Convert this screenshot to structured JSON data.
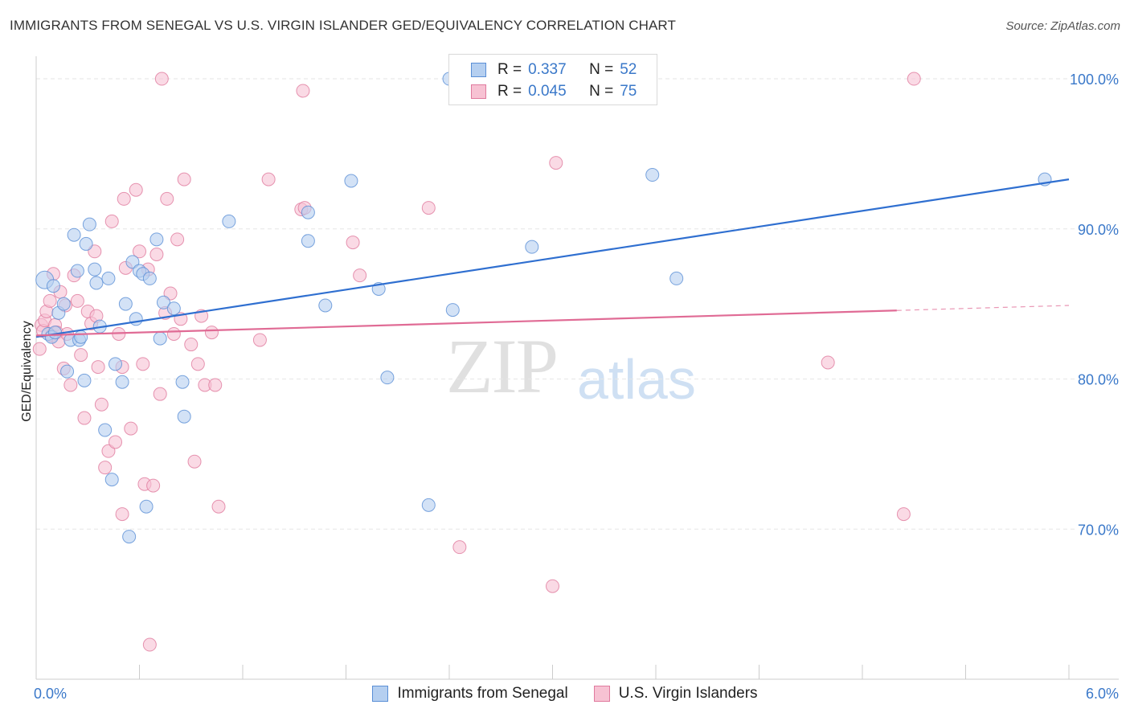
{
  "title": "IMMIGRANTS FROM SENEGAL VS U.S. VIRGIN ISLANDER GED/EQUIVALENCY CORRELATION CHART",
  "source": "Source: ZipAtlas.com",
  "watermark": {
    "part1": "ZIP",
    "part2": "atlas"
  },
  "legend_top": [
    {
      "r_label": "R =",
      "r_value": "0.337",
      "n_label": "N =",
      "n_value": "52"
    },
    {
      "r_label": "R =",
      "r_value": "0.045",
      "n_label": "N =",
      "n_value": "75"
    }
  ],
  "colors": {
    "blue_fill": "#b5cff0",
    "blue_stroke": "#5a8fd6",
    "blue_line": "#2f6fd0",
    "pink_fill": "#f7c2d3",
    "pink_stroke": "#e07a9e",
    "pink_line": "#e06b95",
    "grid": "#e6e6e6",
    "tick_text": "#3a78c9"
  },
  "chart_data": {
    "type": "scatter",
    "title": "IMMIGRANTS FROM SENEGAL VS U.S. VIRGIN ISLANDER GED/EQUIVALENCY CORRELATION CHART",
    "xlabel": "",
    "ylabel": "GED/Equivalency",
    "xlim": [
      0,
      6.0
    ],
    "ylim": [
      60.0,
      101.5
    ],
    "x_tick_labels": [
      {
        "value": 0,
        "label": "0.0%"
      },
      {
        "value": 6.0,
        "label": "6.0%"
      }
    ],
    "y_ticks": [
      {
        "value": 100,
        "label": "100.0%"
      },
      {
        "value": 90,
        "label": "90.0%"
      },
      {
        "value": 80,
        "label": "80.0%"
      },
      {
        "value": 70,
        "label": "70.0%"
      }
    ],
    "grid": true,
    "legend_position": "bottom",
    "series": [
      {
        "name": "Immigrants from Senegal",
        "color": "blue",
        "trend": {
          "x": [
            0,
            6.0
          ],
          "y": [
            82.8,
            93.3
          ],
          "dashed_from": null
        },
        "points": [
          [
            0.05,
            86.6
          ],
          [
            0.07,
            83.0
          ],
          [
            0.09,
            82.8
          ],
          [
            0.1,
            86.2
          ],
          [
            0.11,
            83.1
          ],
          [
            0.13,
            84.4
          ],
          [
            0.16,
            85.0
          ],
          [
            0.18,
            80.5
          ],
          [
            0.2,
            82.6
          ],
          [
            0.22,
            89.6
          ],
          [
            0.24,
            87.2
          ],
          [
            0.25,
            82.6
          ],
          [
            0.26,
            82.8
          ],
          [
            0.28,
            79.9
          ],
          [
            0.29,
            89.0
          ],
          [
            0.31,
            90.3
          ],
          [
            0.34,
            87.3
          ],
          [
            0.35,
            86.4
          ],
          [
            0.37,
            83.5
          ],
          [
            0.4,
            76.6
          ],
          [
            0.42,
            86.7
          ],
          [
            0.44,
            73.3
          ],
          [
            0.46,
            81.0
          ],
          [
            0.5,
            79.8
          ],
          [
            0.52,
            85.0
          ],
          [
            0.54,
            69.5
          ],
          [
            0.56,
            87.8
          ],
          [
            0.58,
            84.0
          ],
          [
            0.6,
            87.2
          ],
          [
            0.62,
            87.0
          ],
          [
            0.64,
            71.5
          ],
          [
            0.66,
            86.7
          ],
          [
            0.7,
            89.3
          ],
          [
            0.72,
            82.7
          ],
          [
            0.74,
            85.1
          ],
          [
            0.8,
            84.7
          ],
          [
            0.85,
            79.8
          ],
          [
            0.86,
            77.5
          ],
          [
            1.12,
            90.5
          ],
          [
            1.58,
            89.2
          ],
          [
            1.58,
            91.1
          ],
          [
            1.68,
            84.9
          ],
          [
            1.83,
            93.2
          ],
          [
            1.99,
            86.0
          ],
          [
            2.04,
            80.1
          ],
          [
            2.28,
            71.6
          ],
          [
            2.42,
            84.6
          ],
          [
            2.4,
            100.0
          ],
          [
            2.88,
            88.8
          ],
          [
            3.58,
            93.6
          ],
          [
            3.72,
            86.7
          ],
          [
            5.86,
            93.3
          ]
        ]
      },
      {
        "name": "U.S. Virgin Islanders",
        "color": "pink",
        "trend": {
          "x": [
            0,
            6.0
          ],
          "y": [
            82.9,
            84.9
          ],
          "dashed_from": 5.0
        },
        "points": [
          [
            0.02,
            82.0
          ],
          [
            0.03,
            83.6
          ],
          [
            0.04,
            83.2
          ],
          [
            0.05,
            83.9
          ],
          [
            0.06,
            84.5
          ],
          [
            0.08,
            85.2
          ],
          [
            0.09,
            82.9
          ],
          [
            0.1,
            87.0
          ],
          [
            0.11,
            83.6
          ],
          [
            0.12,
            83.1
          ],
          [
            0.13,
            82.5
          ],
          [
            0.14,
            85.8
          ],
          [
            0.16,
            80.7
          ],
          [
            0.17,
            84.9
          ],
          [
            0.18,
            83.0
          ],
          [
            0.2,
            79.6
          ],
          [
            0.22,
            86.9
          ],
          [
            0.24,
            85.2
          ],
          [
            0.26,
            81.6
          ],
          [
            0.28,
            77.4
          ],
          [
            0.3,
            84.5
          ],
          [
            0.32,
            83.7
          ],
          [
            0.34,
            88.5
          ],
          [
            0.35,
            84.2
          ],
          [
            0.36,
            80.8
          ],
          [
            0.38,
            78.3
          ],
          [
            0.4,
            74.1
          ],
          [
            0.42,
            75.2
          ],
          [
            0.44,
            90.5
          ],
          [
            0.46,
            75.8
          ],
          [
            0.48,
            83.0
          ],
          [
            0.5,
            71.0
          ],
          [
            0.51,
            92.0
          ],
          [
            0.52,
            87.4
          ],
          [
            0.55,
            76.7
          ],
          [
            0.58,
            92.6
          ],
          [
            0.6,
            88.5
          ],
          [
            0.62,
            81.0
          ],
          [
            0.63,
            73.0
          ],
          [
            0.65,
            87.3
          ],
          [
            0.66,
            62.3
          ],
          [
            0.68,
            72.9
          ],
          [
            0.7,
            88.3
          ],
          [
            0.72,
            79.0
          ],
          [
            0.73,
            100.0
          ],
          [
            0.75,
            84.4
          ],
          [
            0.76,
            92.0
          ],
          [
            0.78,
            85.7
          ],
          [
            0.8,
            83.0
          ],
          [
            0.82,
            89.3
          ],
          [
            0.84,
            84.0
          ],
          [
            0.86,
            93.3
          ],
          [
            0.9,
            82.3
          ],
          [
            0.92,
            74.5
          ],
          [
            0.94,
            81.0
          ],
          [
            0.96,
            84.2
          ],
          [
            0.98,
            79.6
          ],
          [
            1.02,
            83.1
          ],
          [
            1.04,
            79.6
          ],
          [
            1.06,
            71.5
          ],
          [
            1.3,
            82.6
          ],
          [
            1.35,
            93.3
          ],
          [
            1.54,
            91.3
          ],
          [
            1.55,
            99.2
          ],
          [
            1.84,
            89.1
          ],
          [
            1.88,
            86.9
          ],
          [
            2.28,
            91.4
          ],
          [
            2.46,
            68.8
          ],
          [
            3.0,
            66.2
          ],
          [
            3.02,
            94.4
          ],
          [
            4.6,
            81.1
          ],
          [
            5.04,
            71.0
          ],
          [
            5.1,
            100.0
          ],
          [
            1.56,
            91.4
          ],
          [
            0.5,
            80.8
          ]
        ]
      }
    ]
  },
  "legend_bottom": [
    "Immigrants from Senegal",
    "U.S. Virgin Islanders"
  ]
}
